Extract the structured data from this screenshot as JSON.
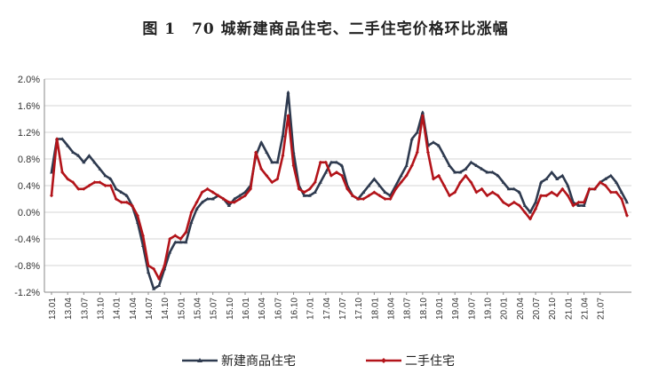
{
  "chart_data": {
    "type": "line",
    "title": "图 1　70 城新建商品住宅、二手住宅价格环比涨幅",
    "xlabel": "",
    "ylabel": "",
    "ylim": [
      -1.2,
      2.0
    ],
    "y_ticks": [
      "2.0%",
      "1.6%",
      "1.2%",
      "0.8%",
      "0.4%",
      "0.0%",
      "-0.4%",
      "-0.8%",
      "-1.2%"
    ],
    "y_tick_values": [
      2.0,
      1.6,
      1.2,
      0.8,
      0.4,
      0.0,
      -0.4,
      -0.8,
      -1.2
    ],
    "x_ticks": [
      "13.01",
      "13.04",
      "13.07",
      "13.10",
      "14.01",
      "14.04",
      "14.07",
      "14.10",
      "15.01",
      "15.04",
      "15.07",
      "15.10",
      "16.01",
      "16.04",
      "16.07",
      "16.10",
      "17.01",
      "17.04",
      "17.07",
      "17.10",
      "18.01",
      "18.04",
      "18.07",
      "18.10",
      "19.01",
      "19.04",
      "19.07",
      "19.10",
      "20.01",
      "20.04",
      "20.07",
      "20.10",
      "21.01",
      "21.04",
      "21.07"
    ],
    "grid": true,
    "legend": "bottom",
    "series": [
      {
        "name": "新建商品住宅",
        "color": "#2e3a4f",
        "marker": "triangle",
        "values": [
          0.6,
          1.1,
          1.1,
          1.0,
          0.9,
          0.85,
          0.75,
          0.85,
          0.75,
          0.65,
          0.55,
          0.5,
          0.35,
          0.3,
          0.25,
          0.1,
          -0.15,
          -0.5,
          -0.9,
          -1.15,
          -1.1,
          -0.85,
          -0.6,
          -0.45,
          -0.45,
          -0.45,
          -0.15,
          0.05,
          0.15,
          0.2,
          0.2,
          0.25,
          0.2,
          0.1,
          0.2,
          0.25,
          0.3,
          0.4,
          0.85,
          1.05,
          0.9,
          0.75,
          0.75,
          1.15,
          1.8,
          0.9,
          0.4,
          0.25,
          0.25,
          0.3,
          0.45,
          0.6,
          0.75,
          0.75,
          0.7,
          0.4,
          0.25,
          0.2,
          0.3,
          0.4,
          0.5,
          0.4,
          0.3,
          0.25,
          0.4,
          0.55,
          0.7,
          1.1,
          1.2,
          1.5,
          1.0,
          1.05,
          1.0,
          0.85,
          0.7,
          0.6,
          0.6,
          0.65,
          0.75,
          0.7,
          0.65,
          0.6,
          0.6,
          0.55,
          0.45,
          0.35,
          0.35,
          0.3,
          0.1,
          0.0,
          0.15,
          0.45,
          0.5,
          0.6,
          0.5,
          0.55,
          0.4,
          0.15,
          0.1,
          0.1,
          0.35,
          0.35,
          0.45,
          0.5,
          0.55,
          0.45,
          0.3,
          0.15
        ]
      },
      {
        "name": "二手住宅",
        "color": "#b3141a",
        "marker": "diamond",
        "values": [
          0.25,
          1.1,
          0.6,
          0.5,
          0.45,
          0.35,
          0.35,
          0.4,
          0.45,
          0.45,
          0.4,
          0.4,
          0.2,
          0.15,
          0.15,
          0.1,
          -0.05,
          -0.35,
          -0.8,
          -0.85,
          -1.0,
          -0.8,
          -0.4,
          -0.35,
          -0.4,
          -0.3,
          0.0,
          0.15,
          0.3,
          0.35,
          0.3,
          0.25,
          0.2,
          0.15,
          0.15,
          0.2,
          0.25,
          0.35,
          0.9,
          0.65,
          0.55,
          0.45,
          0.5,
          0.85,
          1.45,
          0.7,
          0.35,
          0.3,
          0.35,
          0.45,
          0.75,
          0.75,
          0.55,
          0.6,
          0.55,
          0.35,
          0.25,
          0.2,
          0.2,
          0.25,
          0.3,
          0.25,
          0.2,
          0.2,
          0.35,
          0.45,
          0.55,
          0.7,
          0.9,
          1.45,
          0.9,
          0.5,
          0.55,
          0.4,
          0.25,
          0.3,
          0.45,
          0.55,
          0.45,
          0.3,
          0.35,
          0.25,
          0.3,
          0.25,
          0.15,
          0.1,
          0.15,
          0.1,
          0.0,
          -0.1,
          0.05,
          0.25,
          0.25,
          0.3,
          0.25,
          0.35,
          0.25,
          0.1,
          0.15,
          0.15,
          0.35,
          0.35,
          0.45,
          0.4,
          0.3,
          0.3,
          0.2,
          -0.05
        ]
      }
    ]
  }
}
